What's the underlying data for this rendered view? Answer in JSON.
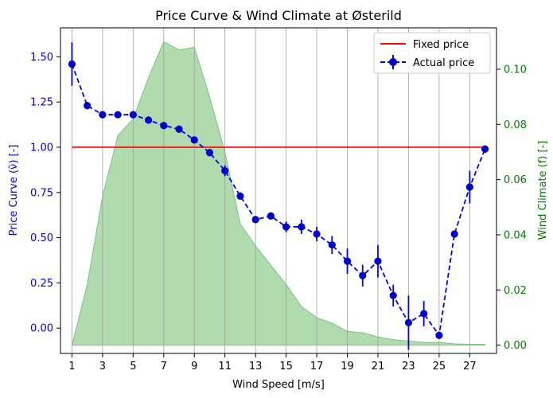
{
  "chart_data": {
    "type": "line",
    "title": "Price Curve & Wind Climate at Østerild",
    "xlabel": "Wind Speed [m/s]",
    "ylabel_left": "Price Curve (ν̃) [-]",
    "ylabel_right": "Wind Climate (f) [-]",
    "xlim": [
      0.25,
      28.75
    ],
    "ylim_left": [
      -0.14,
      1.66
    ],
    "ylim_right": [
      -0.003,
      0.115
    ],
    "xticks": [
      1,
      3,
      5,
      7,
      9,
      11,
      13,
      15,
      17,
      19,
      21,
      23,
      25,
      27
    ],
    "yticks_left": [
      0.0,
      0.25,
      0.5,
      0.75,
      1.0,
      1.25,
      1.5
    ],
    "ytick_labels_left": [
      "0.00",
      "0.25",
      "0.50",
      "0.75",
      "1.00",
      "1.25",
      "1.50"
    ],
    "yticks_right": [
      0.0,
      0.02,
      0.04,
      0.06,
      0.08,
      0.1
    ],
    "ytick_labels_right": [
      "0.00",
      "0.02",
      "0.04",
      "0.06",
      "0.08",
      "0.10"
    ],
    "grid": "vertical",
    "legend_placement": "top-right",
    "colors": {
      "fixed": "#ff0000",
      "actual": "#0000ff",
      "actual_marker": "#0000cc",
      "left_axis": "#0000ff",
      "right_axis": "#008000",
      "area_fill": "#2ca02c",
      "grid": "#a0a0a0"
    },
    "series": [
      {
        "name": "Fixed price",
        "type": "line",
        "x": [
          1,
          28
        ],
        "y": [
          1.0,
          1.0
        ]
      },
      {
        "name": "Actual price",
        "type": "errorbar",
        "x": [
          1,
          2,
          3,
          4,
          5,
          6,
          7,
          8,
          9,
          10,
          11,
          12,
          13,
          14,
          15,
          16,
          17,
          18,
          19,
          20,
          21,
          22,
          23,
          24,
          25,
          26,
          27,
          28
        ],
        "y": [
          1.46,
          1.23,
          1.18,
          1.18,
          1.18,
          1.15,
          1.12,
          1.1,
          1.04,
          0.97,
          0.87,
          0.73,
          0.6,
          0.62,
          0.56,
          0.56,
          0.52,
          0.46,
          0.37,
          0.29,
          0.37,
          0.18,
          0.03,
          0.08,
          -0.04,
          0.52,
          0.78,
          0.99
        ],
        "err": [
          0.12,
          0.02,
          0.02,
          0.01,
          0.02,
          0.02,
          0.02,
          0.02,
          0.02,
          0.02,
          0.03,
          0.02,
          0.02,
          0.02,
          0.03,
          0.04,
          0.04,
          0.05,
          0.07,
          0.06,
          0.09,
          0.06,
          0.15,
          0.07,
          0.02,
          0.02,
          0.09,
          0.02
        ]
      },
      {
        "name": "Wind climate",
        "type": "area",
        "axis": "right",
        "x": [
          1,
          2,
          3,
          4,
          5,
          6,
          7,
          8,
          9,
          10,
          11,
          12,
          13,
          14,
          15,
          16,
          17,
          18,
          19,
          20,
          21,
          22,
          23,
          24,
          25,
          26,
          27,
          28
        ],
        "y": [
          0.0,
          0.022,
          0.054,
          0.076,
          0.082,
          0.097,
          0.11,
          0.107,
          0.108,
          0.09,
          0.07,
          0.044,
          0.036,
          0.029,
          0.022,
          0.014,
          0.01,
          0.008,
          0.005,
          0.0045,
          0.003,
          0.002,
          0.0015,
          0.001,
          0.001,
          0.0005,
          0.0003,
          0.0003
        ]
      }
    ]
  }
}
